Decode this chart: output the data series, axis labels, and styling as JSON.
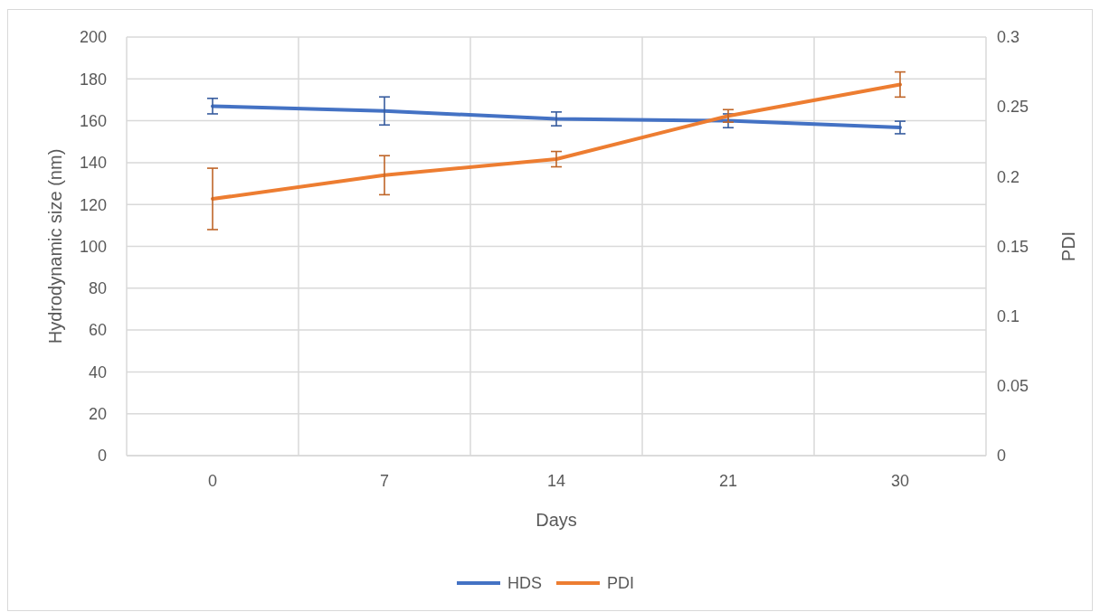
{
  "chart_data": {
    "type": "line",
    "xlabel": "Days",
    "ylabel": "Hydrodynamic size (nm)",
    "y2label": "PDI",
    "categories": [
      "0",
      "7",
      "14",
      "21",
      "30"
    ],
    "series": [
      {
        "name": "HDS",
        "color": "#4472c4",
        "values": [
          167,
          164.7,
          160.9,
          160,
          156.8
        ],
        "errors": [
          3.7,
          6.7,
          3.3,
          3.3,
          3
        ]
      },
      {
        "name": "PDI",
        "color": "#ed7d31",
        "axis": "y2",
        "values": [
          0.184,
          0.201,
          0.2125,
          0.2435,
          0.266
        ],
        "errors": [
          0.022,
          0.014,
          0.0055,
          0.0045,
          0.009
        ]
      }
    ],
    "ylim": [
      0,
      200
    ],
    "yticks": [
      0,
      20,
      40,
      60,
      80,
      100,
      120,
      140,
      160,
      180,
      200
    ],
    "y2lim": [
      0,
      0.3
    ],
    "y2ticks": [
      0,
      0.05,
      0.1,
      0.15,
      0.2,
      0.25,
      0.3
    ],
    "grid": true,
    "legend": "bottom",
    "marker": "none",
    "line_style": "solid"
  }
}
